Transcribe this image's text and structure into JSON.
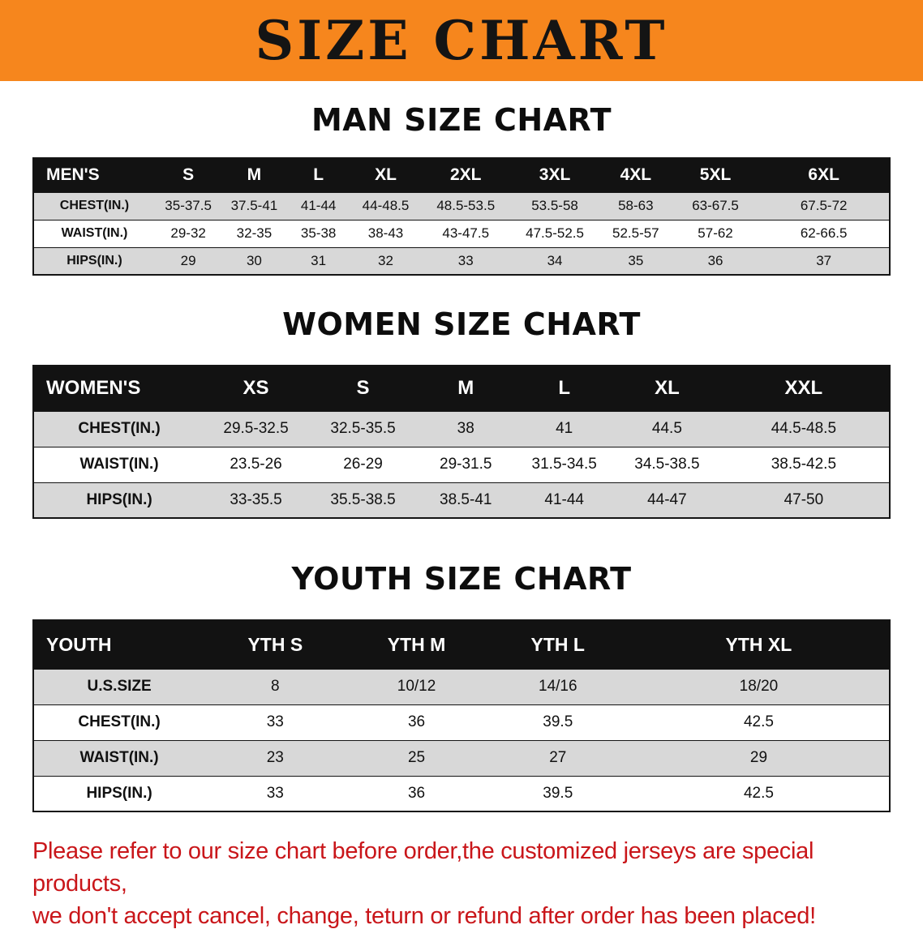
{
  "banner": {
    "title": "SIZE CHART",
    "bg_color": "#f6861d"
  },
  "sections": {
    "men": {
      "heading": "MAN SIZE CHART",
      "table": {
        "header": [
          "MEN'S",
          "S",
          "M",
          "L",
          "XL",
          "2XL",
          "3XL",
          "4XL",
          "5XL",
          "6XL"
        ],
        "rows": [
          [
            "CHEST(IN.)",
            "35-37.5",
            "37.5-41",
            "41-44",
            "44-48.5",
            "48.5-53.5",
            "53.5-58",
            "58-63",
            "63-67.5",
            "67.5-72"
          ],
          [
            "WAIST(IN.)",
            "29-32",
            "32-35",
            "35-38",
            "38-43",
            "43-47.5",
            "47.5-52.5",
            "52.5-57",
            "57-62",
            "62-66.5"
          ],
          [
            "HIPS(IN.)",
            "29",
            "30",
            "31",
            "32",
            "33",
            "34",
            "35",
            "36",
            "37"
          ]
        ]
      }
    },
    "women": {
      "heading": "WOMEN SIZE CHART",
      "table": {
        "header": [
          "WOMEN'S",
          "XS",
          "S",
          "M",
          "L",
          "XL",
          "XXL"
        ],
        "rows": [
          [
            "CHEST(IN.)",
            "29.5-32.5",
            "32.5-35.5",
            "38",
            "41",
            "44.5",
            "44.5-48.5"
          ],
          [
            "WAIST(IN.)",
            "23.5-26",
            "26-29",
            "29-31.5",
            "31.5-34.5",
            "34.5-38.5",
            "38.5-42.5"
          ],
          [
            "HIPS(IN.)",
            "33-35.5",
            "35.5-38.5",
            "38.5-41",
            "41-44",
            "44-47",
            "47-50"
          ]
        ]
      }
    },
    "youth": {
      "heading": "YOUTH SIZE CHART",
      "table": {
        "header": [
          "YOUTH",
          "YTH S",
          "YTH M",
          "YTH L",
          "YTH XL"
        ],
        "rows": [
          [
            "U.S.SIZE",
            "8",
            "10/12",
            "14/16",
            "18/20"
          ],
          [
            "CHEST(IN.)",
            "33",
            "36",
            "39.5",
            "42.5"
          ],
          [
            "WAIST(IN.)",
            "23",
            "25",
            "27",
            "29"
          ],
          [
            "HIPS(IN.)",
            "33",
            "36",
            "39.5",
            "42.5"
          ]
        ]
      }
    }
  },
  "disclaimer": {
    "line1": "Please refer to our size chart before order,the customized jerseys are special products,",
    "line2": "we don't accept cancel, change, teturn or refund after order has been placed!",
    "text_color": "#c9161a"
  }
}
